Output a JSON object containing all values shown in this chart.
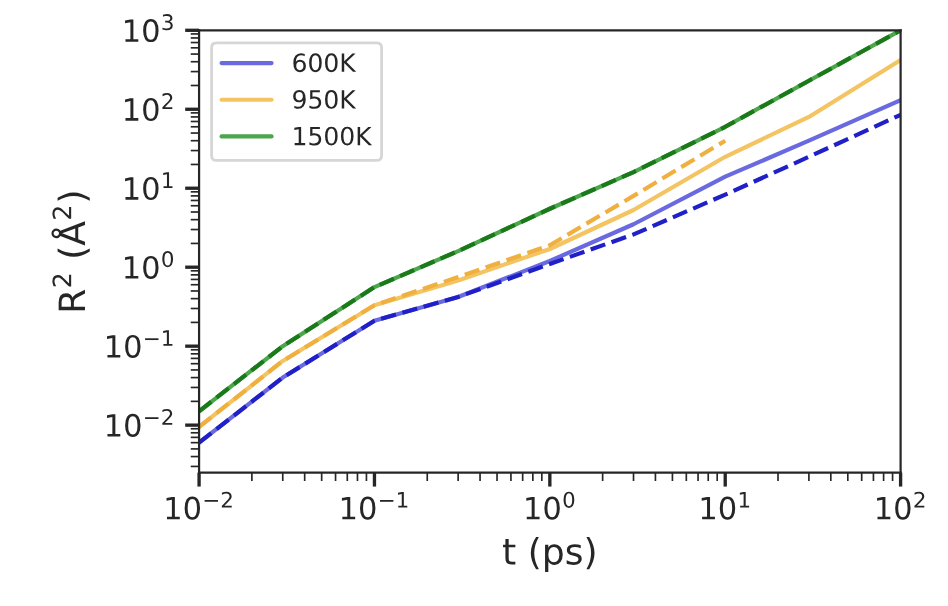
{
  "chart_data": {
    "type": "line",
    "xlabel": "t (ps)",
    "ylabel": "R$^{2}$ (Å$^{2}$)",
    "log": "xy",
    "legend": "top left",
    "grid": false,
    "xlim": [
      0.01,
      100
    ],
    "ylim": [
      0.0025,
      1000
    ],
    "xticks": [
      {
        "value": 0.01,
        "label": "10$^{−2}$"
      },
      {
        "value": 0.1,
        "label": "10$^{−1}$"
      },
      {
        "value": 1,
        "label": "10$^{0}$"
      },
      {
        "value": 10,
        "label": "10$^{1}$"
      },
      {
        "value": 100,
        "label": "10$^{2}$"
      }
    ],
    "yticks": [
      {
        "value": 0.01,
        "label": "10$^{−2}$"
      },
      {
        "value": 0.1,
        "label": "10$^{−1}$"
      },
      {
        "value": 1,
        "label": "10$^{0}$"
      },
      {
        "value": 10,
        "label": "10$^{1}$"
      },
      {
        "value": 100,
        "label": "10$^{2}$"
      },
      {
        "value": 1000,
        "label": "10$^{3}$"
      }
    ],
    "x": [
      0.01,
      0.03,
      0.1,
      0.3,
      1,
      3,
      10,
      30,
      100
    ],
    "series": [
      {
        "name": "600K",
        "color": "#6a6ae0",
        "line_style": "solid",
        "values": [
          0.006,
          0.04,
          0.21,
          0.42,
          1.2,
          3.5,
          14,
          40,
          130
        ]
      },
      {
        "name": "950K",
        "color": "#f5c462",
        "line_style": "solid",
        "values": [
          0.0095,
          0.065,
          0.33,
          0.68,
          1.7,
          5.3,
          25,
          80,
          420
        ]
      },
      {
        "name": "1500K",
        "color": "#4ca64c",
        "line_style": "solid",
        "values": [
          0.015,
          0.1,
          0.56,
          1.6,
          5.5,
          16,
          60,
          230,
          1000
        ]
      },
      {
        "color": "#2020c8",
        "line_style": "dashed",
        "values": [
          0.006,
          0.04,
          0.21,
          0.42,
          1.1,
          2.6,
          8.3,
          25,
          85
        ]
      },
      {
        "color": "#f0b040",
        "line_style": "dashed",
        "x": [
          0.01,
          0.03,
          0.1,
          0.3,
          1,
          3,
          10
        ],
        "values": [
          0.0095,
          0.065,
          0.33,
          0.75,
          1.9,
          8,
          40
        ]
      },
      {
        "color": "#1a7a1a",
        "line_style": "dashed",
        "values": [
          0.015,
          0.1,
          0.56,
          1.6,
          5.5,
          16,
          60,
          230,
          1000
        ]
      }
    ]
  }
}
